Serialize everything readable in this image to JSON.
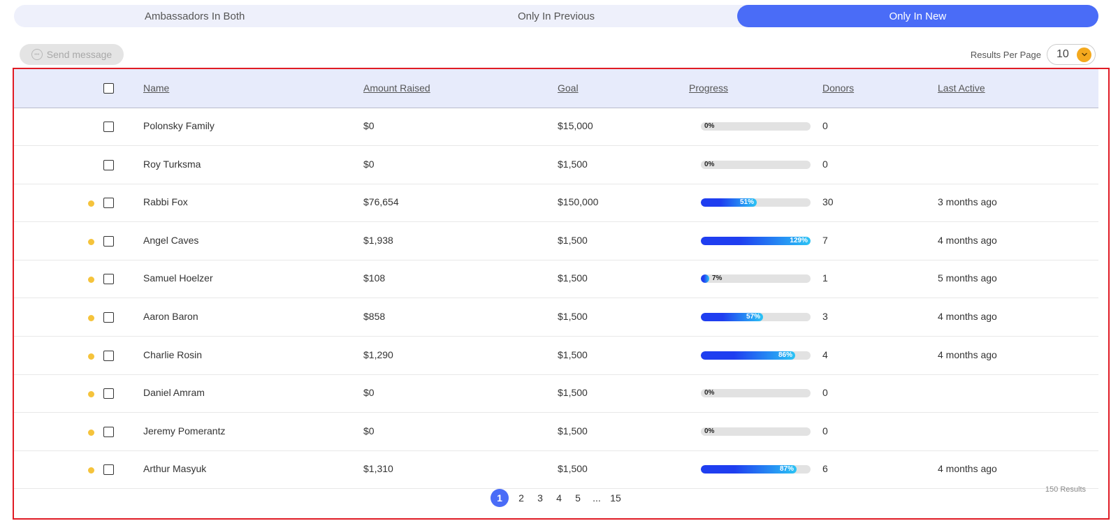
{
  "tabs": [
    {
      "label": "Ambassadors In Both",
      "active": false
    },
    {
      "label": "Only In Previous",
      "active": false
    },
    {
      "label": "Only In New",
      "active": true
    }
  ],
  "toolbar": {
    "send_message_label": "Send message",
    "results_per_page_label": "Results Per Page",
    "results_per_page_value": "10"
  },
  "columns": {
    "name": "Name",
    "amount_raised": "Amount Raised",
    "goal": "Goal",
    "progress": "Progress",
    "donors": "Donors",
    "last_active": "Last Active"
  },
  "rows": [
    {
      "name": "Polonsky Family",
      "amount": "$0",
      "goal": "$15,000",
      "progress": 0,
      "progress_label": "0%",
      "donors": "0",
      "last_active": "",
      "dot": false
    },
    {
      "name": "Roy Turksma",
      "amount": "$0",
      "goal": "$1,500",
      "progress": 0,
      "progress_label": "0%",
      "donors": "0",
      "last_active": "",
      "dot": false
    },
    {
      "name": "Rabbi Fox",
      "amount": "$76,654",
      "goal": "$150,000",
      "progress": 51,
      "progress_label": "51%",
      "donors": "30",
      "last_active": "3 months ago",
      "dot": true
    },
    {
      "name": "Angel Caves",
      "amount": "$1,938",
      "goal": "$1,500",
      "progress": 129,
      "progress_label": "129%",
      "donors": "7",
      "last_active": "4 months ago",
      "dot": true
    },
    {
      "name": "Samuel Hoelzer",
      "amount": "$108",
      "goal": "$1,500",
      "progress": 7,
      "progress_label": "7%",
      "donors": "1",
      "last_active": "5 months ago",
      "dot": true
    },
    {
      "name": "Aaron Baron",
      "amount": "$858",
      "goal": "$1,500",
      "progress": 57,
      "progress_label": "57%",
      "donors": "3",
      "last_active": "4 months ago",
      "dot": true
    },
    {
      "name": "Charlie Rosin",
      "amount": "$1,290",
      "goal": "$1,500",
      "progress": 86,
      "progress_label": "86%",
      "donors": "4",
      "last_active": "4 months ago",
      "dot": true
    },
    {
      "name": "Daniel Amram",
      "amount": "$0",
      "goal": "$1,500",
      "progress": 0,
      "progress_label": "0%",
      "donors": "0",
      "last_active": "",
      "dot": true
    },
    {
      "name": "Jeremy Pomerantz",
      "amount": "$0",
      "goal": "$1,500",
      "progress": 0,
      "progress_label": "0%",
      "donors": "0",
      "last_active": "",
      "dot": true
    },
    {
      "name": "Arthur Masyuk",
      "amount": "$1,310",
      "goal": "$1,500",
      "progress": 87,
      "progress_label": "87%",
      "donors": "6",
      "last_active": "4 months ago",
      "dot": true
    }
  ],
  "pagination": {
    "pages": [
      "1",
      "2",
      "3",
      "4",
      "5",
      "...",
      "15"
    ],
    "current": "1"
  },
  "results_count": "150 Results",
  "colors": {
    "accent": "#4a6cf7",
    "dot": "#f5c33b",
    "frame": "#e01b24",
    "chevron": "#f4a91e"
  }
}
